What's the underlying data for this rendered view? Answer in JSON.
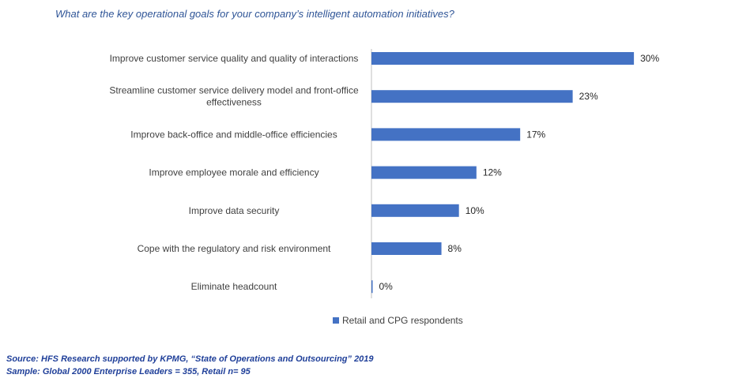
{
  "title": "What are the key operational goals for your company’s intelligent automation initiatives?",
  "chart_data": {
    "type": "bar",
    "orientation": "horizontal",
    "categories": [
      "Improve customer service quality and quality of interactions",
      "Streamline customer service delivery model and front-office effectiveness",
      "Improve back-office and middle-office efficiencies",
      "Improve employee morale and efficiency",
      "Improve data security",
      "Cope with the regulatory and risk environment",
      "Eliminate headcount"
    ],
    "category_lines": [
      [
        "Improve customer service quality and quality of interactions"
      ],
      [
        "Streamline customer service delivery model and front-office",
        "effectiveness"
      ],
      [
        "Improve back-office and middle-office efficiencies"
      ],
      [
        "Improve employee morale and efficiency"
      ],
      [
        "Improve data security"
      ],
      [
        "Cope with the regulatory and risk environment"
      ],
      [
        "Eliminate headcount"
      ]
    ],
    "series": [
      {
        "name": "Retail and CPG respondents",
        "values": [
          30,
          23,
          17,
          12,
          10,
          8,
          0
        ],
        "labels": [
          "30%",
          "23%",
          "17%",
          "12%",
          "10%",
          "8%",
          "0%"
        ],
        "color": "#4472c4"
      }
    ],
    "xlim": [
      0,
      30
    ],
    "grid": false,
    "legend_position": "bottom"
  },
  "footer": {
    "source": "Source: HFS Research supported by KPMG, “State of Operations and Outsourcing” 2019",
    "sample": "Sample: Global 2000 Enterprise Leaders = 355,  Retail n= 95"
  }
}
